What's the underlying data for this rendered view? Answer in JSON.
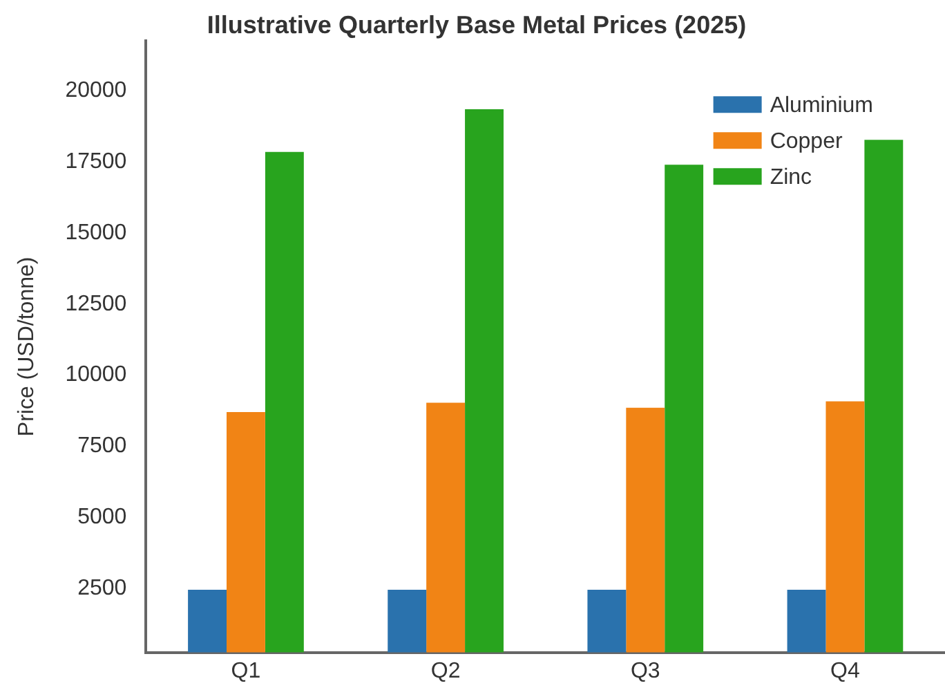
{
  "chart_data": {
    "type": "bar",
    "title": "Illustrative Quarterly Base Metal Prices (2025)",
    "ylabel": "Price (USD/tonne)",
    "categories": [
      "Q1",
      "Q2",
      "Q3",
      "Q4"
    ],
    "series": [
      {
        "name": "Aluminium",
        "color": "#2a72ad",
        "values": [
          2450,
          2450,
          2450,
          2450
        ]
      },
      {
        "name": "Copper",
        "color": "#f18415",
        "values": [
          8700,
          9030,
          8850,
          9080
        ]
      },
      {
        "name": "Zinc",
        "color": "#28a41e",
        "values": [
          17850,
          19350,
          17400,
          18270
        ]
      }
    ],
    "ylim": [
      250,
      21750
    ],
    "yticks": [
      2500,
      5000,
      7500,
      10000,
      12500,
      15000,
      17500,
      20000
    ],
    "grid": false,
    "legend": "top right"
  }
}
